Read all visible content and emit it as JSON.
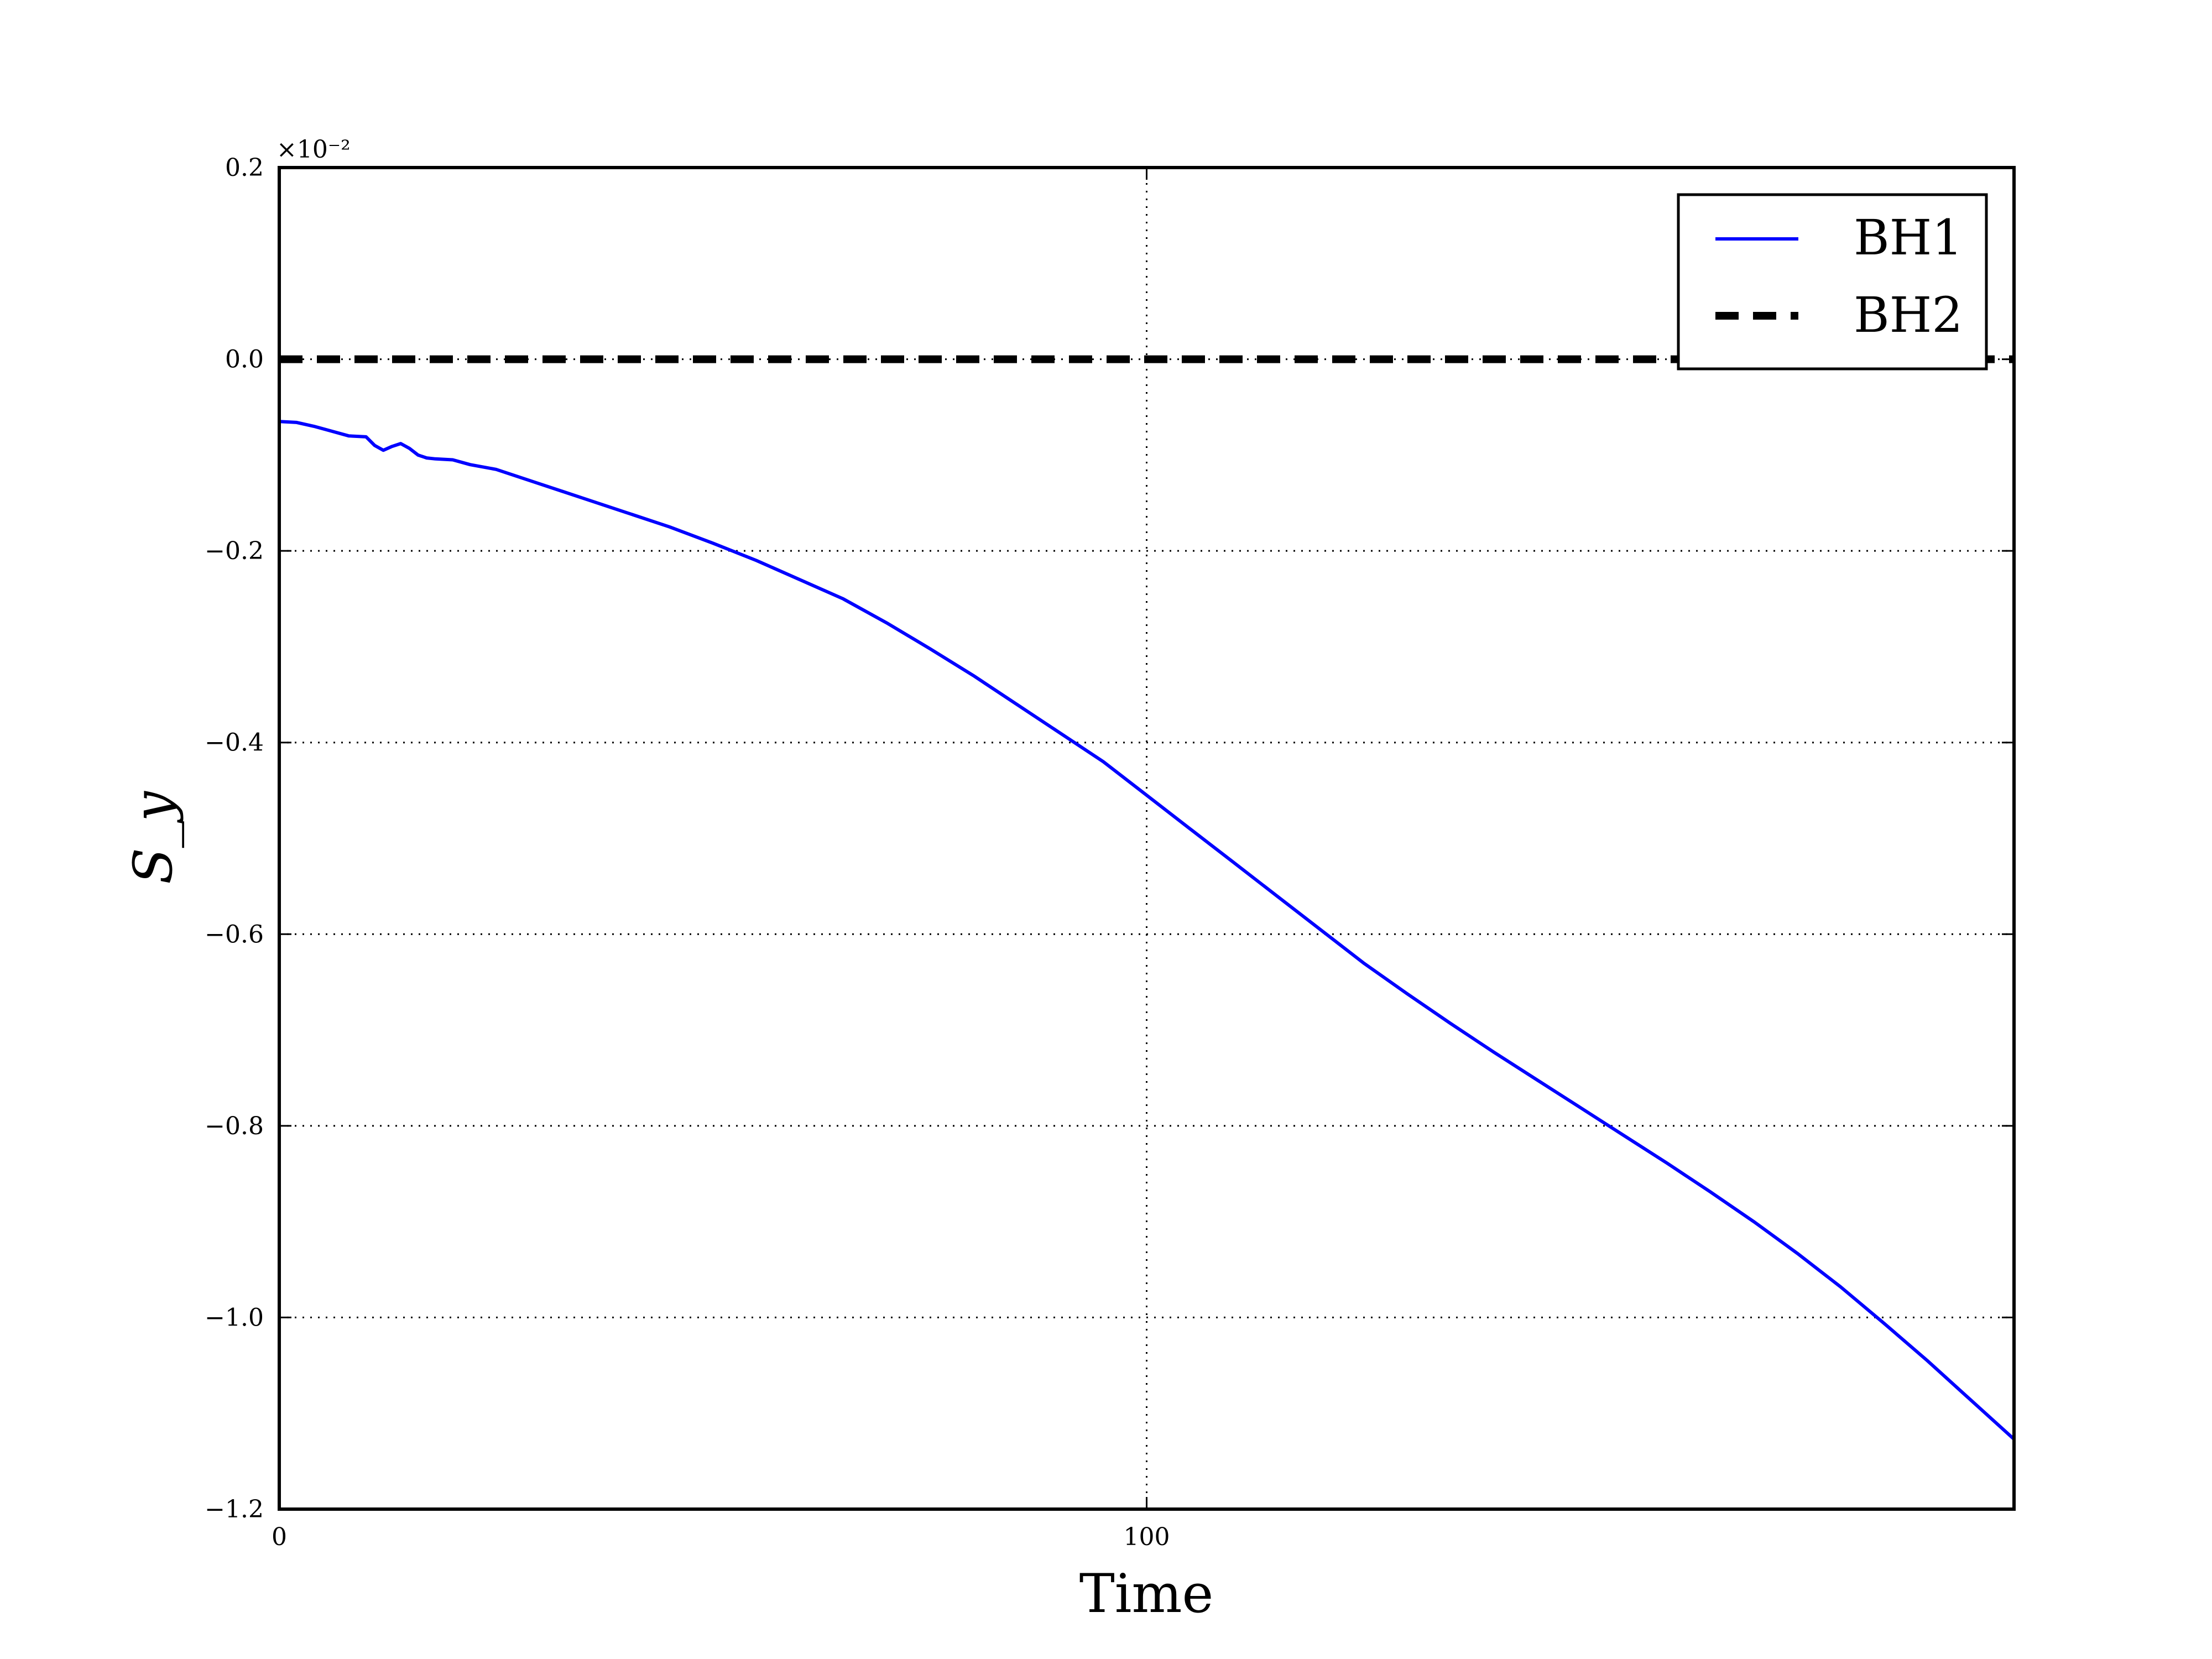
{
  "chart_data": {
    "type": "line",
    "title": "",
    "xlabel": "Time",
    "ylabel": "S_y",
    "y_scale_label": "×10⁻²",
    "xlim": [
      0,
      200
    ],
    "ylim": [
      -1.2,
      0.2
    ],
    "x_ticks": [
      0,
      100
    ],
    "x_tick_labels": [
      "0",
      "100"
    ],
    "y_ticks": [
      0.2,
      0.0,
      -0.2,
      -0.4,
      -0.6,
      -0.8,
      -1.0,
      -1.2
    ],
    "y_tick_labels": [
      "0.2",
      "0.0",
      "−0.2",
      "−0.4",
      "−0.6",
      "−0.8",
      "−1.0",
      "−1.2"
    ],
    "grid": true,
    "legend_position": "top-right",
    "series": [
      {
        "name": "BH1",
        "color": "#0000ff",
        "style": "solid",
        "x": [
          0,
          2,
          4,
          6,
          8,
          10,
          11,
          12,
          13,
          14,
          15,
          16,
          17,
          18,
          20,
          22,
          25,
          30,
          35,
          40,
          45,
          50,
          55,
          60,
          65,
          70,
          75,
          80,
          85,
          90,
          95,
          100,
          105,
          110,
          115,
          120,
          125,
          130,
          135,
          140,
          145,
          150,
          155,
          160,
          165,
          170,
          175,
          180,
          185,
          190,
          195,
          200
        ],
        "y": [
          -0.065,
          -0.066,
          -0.07,
          -0.075,
          -0.08,
          -0.081,
          -0.09,
          -0.095,
          -0.091,
          -0.088,
          -0.093,
          -0.1,
          -0.103,
          -0.104,
          -0.105,
          -0.11,
          -0.115,
          -0.13,
          -0.145,
          -0.16,
          -0.175,
          -0.192,
          -0.21,
          -0.23,
          -0.25,
          -0.275,
          -0.302,
          -0.33,
          -0.36,
          -0.39,
          -0.42,
          -0.455,
          -0.49,
          -0.525,
          -0.56,
          -0.595,
          -0.63,
          -0.662,
          -0.693,
          -0.723,
          -0.752,
          -0.781,
          -0.81,
          -0.839,
          -0.869,
          -0.9,
          -0.933,
          -0.968,
          -1.006,
          -1.045,
          -1.086,
          -1.127
        ]
      },
      {
        "name": "BH2",
        "color": "#000000",
        "style": "dashed",
        "x": [
          0,
          200
        ],
        "y": [
          0.0,
          0.0
        ]
      }
    ]
  }
}
